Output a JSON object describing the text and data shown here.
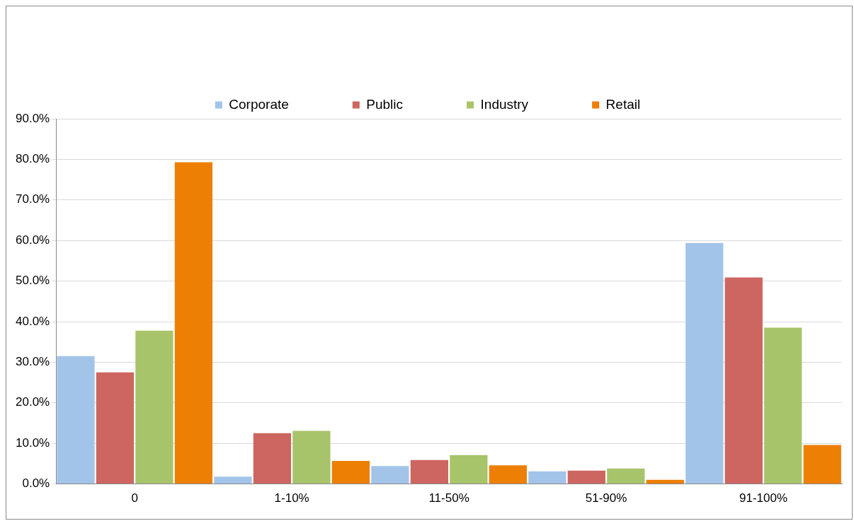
{
  "chart_data": {
    "type": "bar",
    "categories": [
      "0",
      "1-10%",
      "11-50%",
      "51-90%",
      "91-100%"
    ],
    "series": [
      {
        "name": "Corporate",
        "color": "#a3c4e9",
        "values": [
          31.5,
          1.8,
          4.4,
          3.1,
          59.4
        ]
      },
      {
        "name": "Public",
        "color": "#cd6660",
        "values": [
          27.5,
          12.5,
          5.9,
          3.3,
          50.9
        ]
      },
      {
        "name": "Industry",
        "color": "#a8c46b",
        "values": [
          37.8,
          13.1,
          7.1,
          3.8,
          38.5
        ]
      },
      {
        "name": "Retail",
        "color": "#ed7f05",
        "values": [
          79.3,
          5.7,
          4.6,
          1.0,
          9.6
        ]
      }
    ],
    "ylim": [
      0,
      90
    ],
    "yticks": [
      {
        "value": 0,
        "label": "0.0%"
      },
      {
        "value": 10,
        "label": "10.0%"
      },
      {
        "value": 20,
        "label": "20.0%"
      },
      {
        "value": 30,
        "label": "30.0%"
      },
      {
        "value": 40,
        "label": "40.0%"
      },
      {
        "value": 50,
        "label": "50.0%"
      },
      {
        "value": 60,
        "label": "60.0%"
      },
      {
        "value": 70,
        "label": "70.0%"
      },
      {
        "value": 80,
        "label": "80.0%"
      },
      {
        "value": 90,
        "label": "90.0%"
      }
    ],
    "grid": "y",
    "legend": "top"
  }
}
